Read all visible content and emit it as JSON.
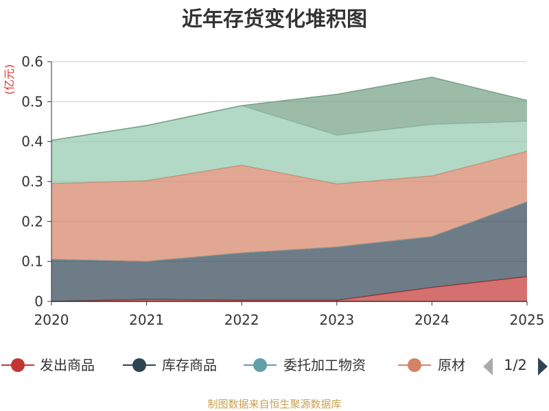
{
  "chart_data": {
    "type": "area",
    "stacked": true,
    "title": "近年存货变化堆积图",
    "unit_label": "(亿元)",
    "x": [
      "2020",
      "2021",
      "2022",
      "2023",
      "2024",
      "2025"
    ],
    "ylim": [
      0,
      0.6
    ],
    "yticks": [
      "0",
      "0.1",
      "0.2",
      "0.3",
      "0.4",
      "0.5",
      "0.6"
    ],
    "grid": true,
    "series": [
      {
        "name": "发出商品",
        "color": "#c23531",
        "values": [
          0.0,
          0.005,
          0.003,
          0.003,
          0.035,
          0.062
        ]
      },
      {
        "name": "库存商品",
        "color": "#2f4554",
        "values": [
          0.105,
          0.095,
          0.118,
          0.133,
          0.127,
          0.187
        ]
      },
      {
        "name": "委托加工物资",
        "color": "#61a0a8",
        "values": [
          0.0,
          0.0,
          0.0,
          0.0,
          0.0,
          0.0
        ]
      },
      {
        "name": "原材料",
        "color": "#d48265",
        "values": [
          0.19,
          0.202,
          0.22,
          0.158,
          0.152,
          0.127
        ]
      },
      {
        "name": "",
        "color": "#91c7ae",
        "values": [
          0.108,
          0.138,
          0.149,
          0.122,
          0.129,
          0.075
        ]
      },
      {
        "name": "",
        "color": "#749f83",
        "values": [
          0.0,
          0.0,
          0.0,
          0.102,
          0.118,
          0.052
        ]
      }
    ],
    "legend": {
      "position": "bottom",
      "visible_items": [
        "发出商品",
        "库存商品",
        "委托加工物资",
        "原材"
      ],
      "page": "1/2"
    },
    "source": "制图数据来自恒生聚源数据库"
  }
}
